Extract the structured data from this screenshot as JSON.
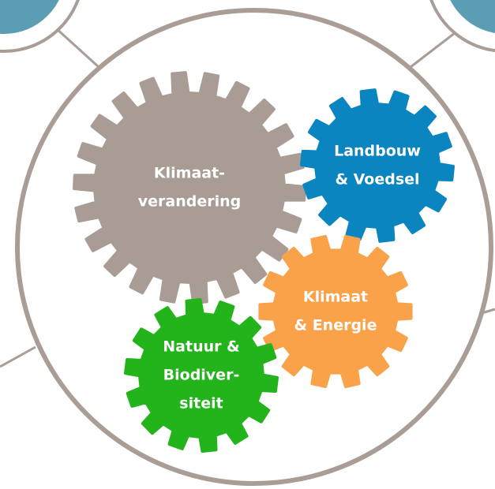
{
  "nodes": [
    {
      "lines": [
        "Klimaat-",
        "verandering"
      ]
    },
    {
      "lines": [
        "Landbouw",
        "& Voedsel"
      ]
    },
    {
      "lines": [
        "Klimaat",
        "& Energie"
      ]
    },
    {
      "lines": [
        "Natuur &",
        "Biodiver-",
        "siteit"
      ]
    }
  ]
}
